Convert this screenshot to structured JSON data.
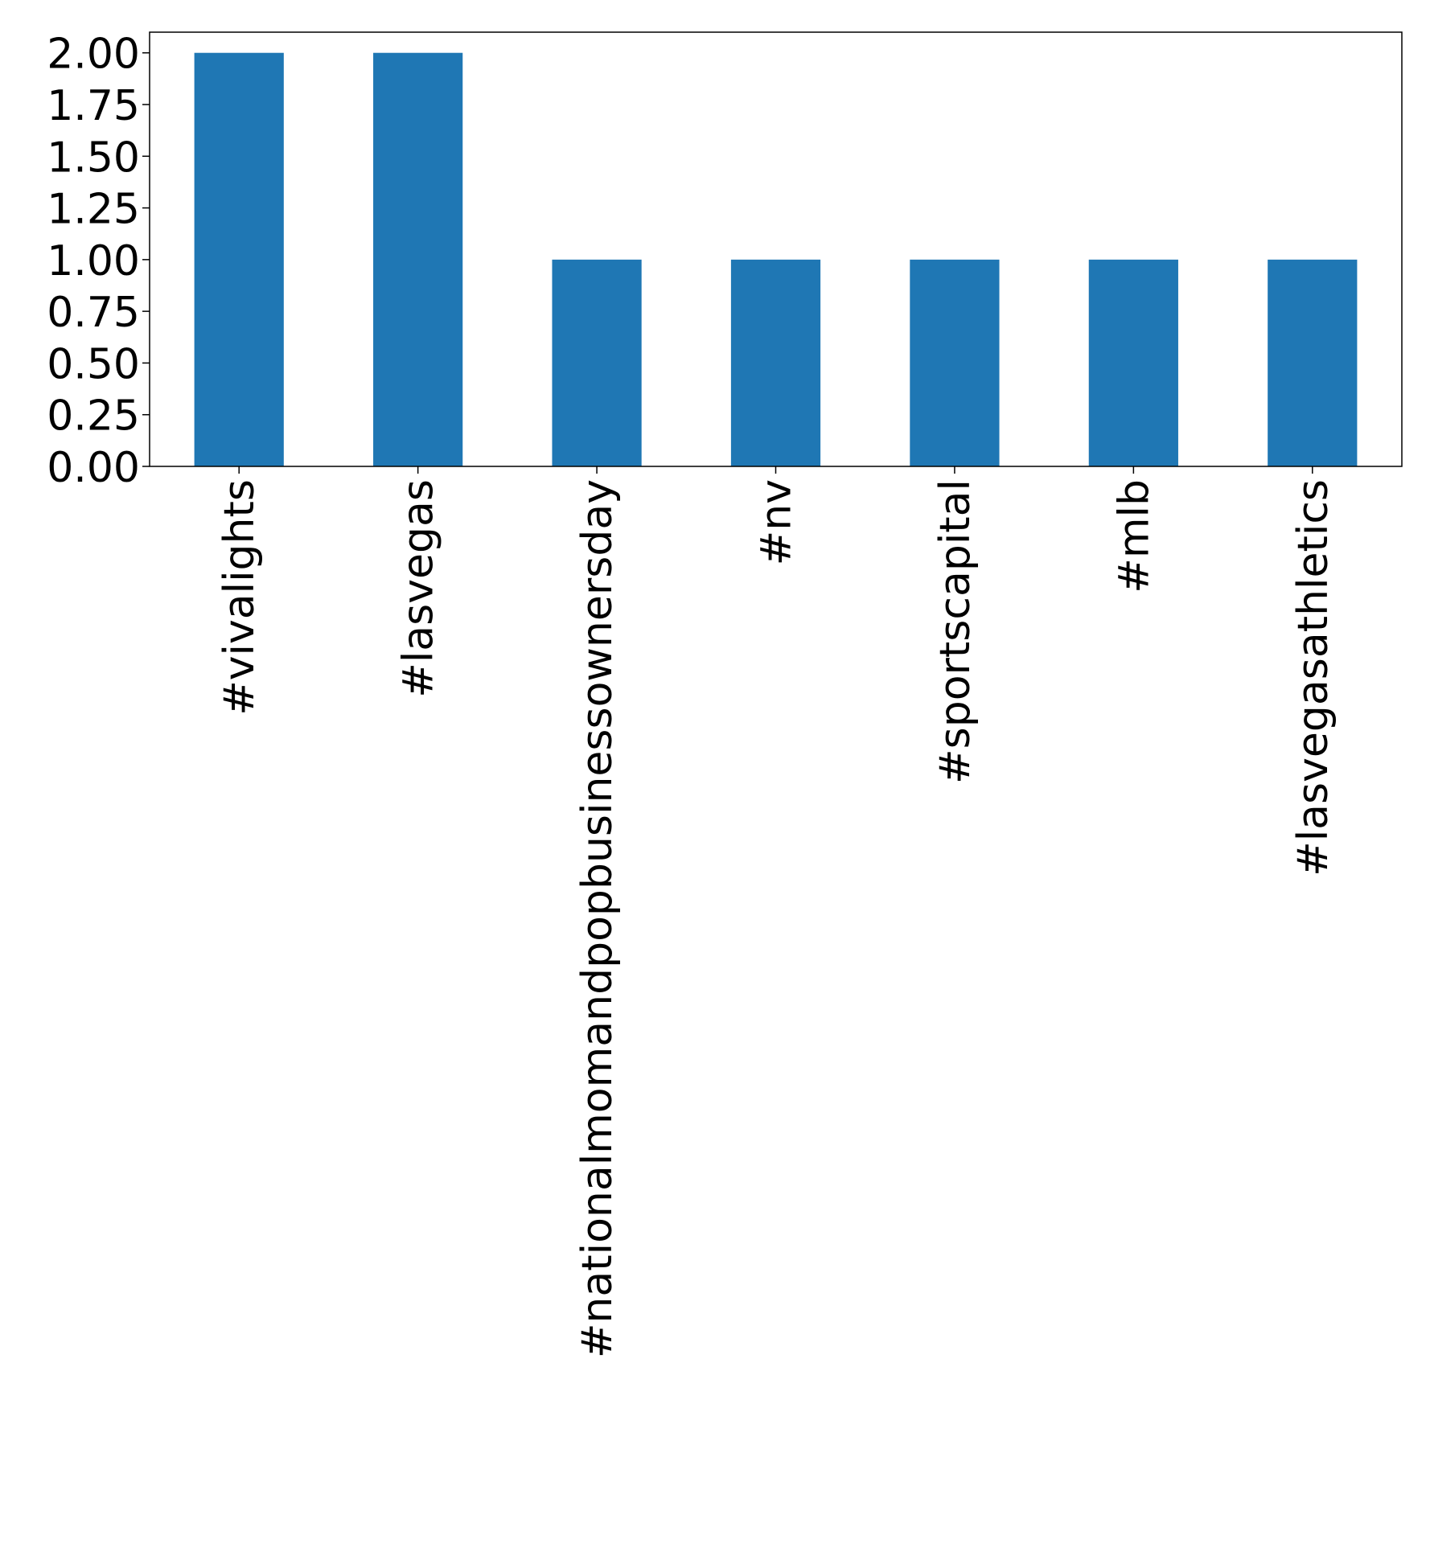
{
  "chart_data": {
    "type": "bar",
    "title": "",
    "xlabel": "",
    "ylabel": "",
    "categories": [
      "#vivalights",
      "#lasvegas",
      "#nationalmomandpopbusinessownersday",
      "#nv",
      "#sportscapital",
      "#mlb",
      "#lasvegasathletics"
    ],
    "values": [
      2,
      2,
      1,
      1,
      1,
      1,
      1
    ],
    "ylim": [
      0,
      2.1
    ],
    "yticks": [
      "0.00",
      "0.25",
      "0.50",
      "0.75",
      "1.00",
      "1.25",
      "1.50",
      "1.75",
      "2.00"
    ],
    "grid": false,
    "bar_color": "#1f77b4"
  }
}
